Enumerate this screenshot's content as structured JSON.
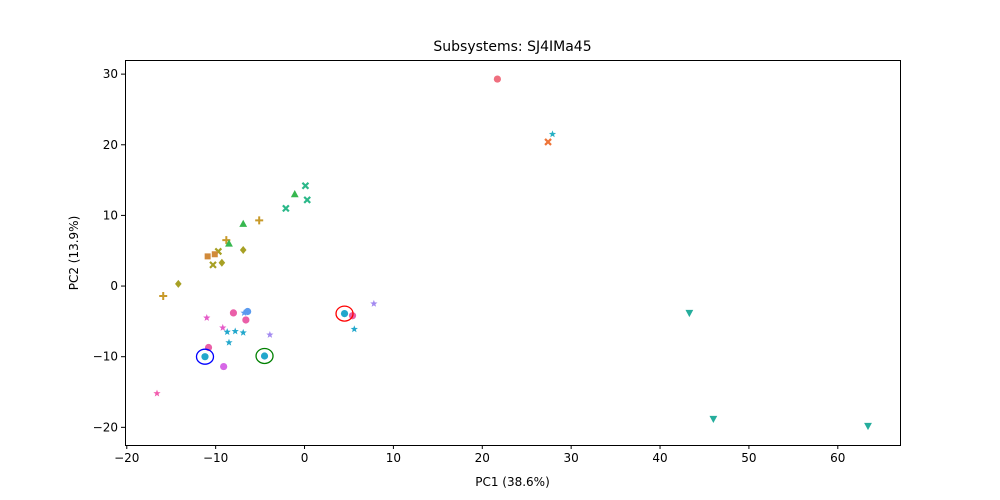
{
  "chart_data": {
    "type": "scatter",
    "title": "Subsystems: SJ4IMa45",
    "xlabel": "PC1 (38.6%)",
    "ylabel": "PC2 (13.9%)",
    "xlim": [
      -20.2,
      67
    ],
    "ylim": [
      -22.5,
      32
    ],
    "xticks": [
      -20,
      -10,
      0,
      10,
      20,
      30,
      40,
      50,
      60
    ],
    "yticks": [
      -20,
      -10,
      0,
      10,
      20,
      30
    ],
    "xtick_labels": [
      "−20",
      "−10",
      "0",
      "10",
      "20",
      "30",
      "40",
      "50",
      "60"
    ],
    "ytick_labels": [
      "−20",
      "−10",
      "0",
      "10",
      "20",
      "30"
    ],
    "grid": false,
    "legend": "none",
    "points": [
      {
        "x": 21.7,
        "y": 29.3,
        "marker": "circle",
        "color": "#ef6f7f"
      },
      {
        "x": 27.9,
        "y": 21.5,
        "marker": "star",
        "color": "#26b0c4"
      },
      {
        "x": 27.4,
        "y": 20.4,
        "marker": "x",
        "color": "#ee7438"
      },
      {
        "x": 0.1,
        "y": 14.2,
        "marker": "x",
        "color": "#2bb889"
      },
      {
        "x": -1.1,
        "y": 13.0,
        "marker": "triangle-up",
        "color": "#37b74f"
      },
      {
        "x": 0.3,
        "y": 12.2,
        "marker": "x",
        "color": "#2bb889"
      },
      {
        "x": -2.1,
        "y": 11.0,
        "marker": "x",
        "color": "#2bb889"
      },
      {
        "x": -5.1,
        "y": 9.3,
        "marker": "plus",
        "color": "#c89a2a"
      },
      {
        "x": -6.9,
        "y": 8.8,
        "marker": "triangle-up",
        "color": "#37b74f"
      },
      {
        "x": -8.8,
        "y": 6.5,
        "marker": "plus",
        "color": "#c89a2a"
      },
      {
        "x": -8.5,
        "y": 6.0,
        "marker": "triangle-up",
        "color": "#37b74f"
      },
      {
        "x": -6.9,
        "y": 5.1,
        "marker": "diamond",
        "color": "#a7a024"
      },
      {
        "x": -9.7,
        "y": 4.9,
        "marker": "x",
        "color": "#a7a024"
      },
      {
        "x": -10.1,
        "y": 4.5,
        "marker": "square",
        "color": "#d18a3a"
      },
      {
        "x": -10.9,
        "y": 4.2,
        "marker": "square",
        "color": "#d18a3a"
      },
      {
        "x": -9.3,
        "y": 3.3,
        "marker": "diamond",
        "color": "#a7a024"
      },
      {
        "x": -10.3,
        "y": 3.0,
        "marker": "x",
        "color": "#a7a024"
      },
      {
        "x": -14.2,
        "y": 0.3,
        "marker": "diamond",
        "color": "#a7a024"
      },
      {
        "x": -15.9,
        "y": -1.4,
        "marker": "plus",
        "color": "#c89a2a"
      },
      {
        "x": 7.8,
        "y": -2.5,
        "marker": "star",
        "color": "#a38af0"
      },
      {
        "x": -6.4,
        "y": -3.6,
        "marker": "circle",
        "color": "#5b9bef"
      },
      {
        "x": -8.0,
        "y": -3.8,
        "marker": "circle",
        "color": "#ea5fa8"
      },
      {
        "x": -6.8,
        "y": -3.8,
        "marker": "star",
        "color": "#5b9bef"
      },
      {
        "x": 4.5,
        "y": -3.9,
        "marker": "circle",
        "color": "#22a7cc"
      },
      {
        "x": 5.4,
        "y": -4.2,
        "marker": "circle",
        "color": "#ea5fa8"
      },
      {
        "x": -11.0,
        "y": -4.5,
        "marker": "star",
        "color": "#e55bc8"
      },
      {
        "x": -6.6,
        "y": -4.8,
        "marker": "circle",
        "color": "#ea5fa8"
      },
      {
        "x": -9.2,
        "y": -5.9,
        "marker": "star",
        "color": "#e55bc8"
      },
      {
        "x": 5.6,
        "y": -6.1,
        "marker": "star",
        "color": "#22a7cc"
      },
      {
        "x": -7.8,
        "y": -6.4,
        "marker": "star",
        "color": "#22a7cc"
      },
      {
        "x": -8.7,
        "y": -6.5,
        "marker": "star",
        "color": "#22a7cc"
      },
      {
        "x": -6.9,
        "y": -6.6,
        "marker": "star",
        "color": "#22a7cc"
      },
      {
        "x": -3.9,
        "y": -6.9,
        "marker": "star",
        "color": "#a38af0"
      },
      {
        "x": -8.5,
        "y": -8.0,
        "marker": "star",
        "color": "#22a7cc"
      },
      {
        "x": -10.8,
        "y": -8.7,
        "marker": "circle",
        "color": "#ea5fa8"
      },
      {
        "x": -11.2,
        "y": -10.0,
        "marker": "circle",
        "color": "#22a7cc"
      },
      {
        "x": -4.5,
        "y": -9.9,
        "marker": "circle",
        "color": "#22a7cc"
      },
      {
        "x": -9.1,
        "y": -11.4,
        "marker": "circle",
        "color": "#d667e6"
      },
      {
        "x": -16.6,
        "y": -15.2,
        "marker": "star",
        "color": "#f25dae"
      },
      {
        "x": 43.3,
        "y": -3.8,
        "marker": "triangle-down",
        "color": "#25ad9c"
      },
      {
        "x": 46.0,
        "y": -18.8,
        "marker": "triangle-down",
        "color": "#25ad9c"
      },
      {
        "x": 63.4,
        "y": -19.8,
        "marker": "triangle-down",
        "color": "#25ad9c"
      }
    ],
    "highlights": [
      {
        "x": 4.5,
        "y": -3.9,
        "color": "#ff0000"
      },
      {
        "x": -11.2,
        "y": -10.0,
        "color": "#0000ff"
      },
      {
        "x": -4.5,
        "y": -9.9,
        "color": "#008000"
      }
    ]
  }
}
